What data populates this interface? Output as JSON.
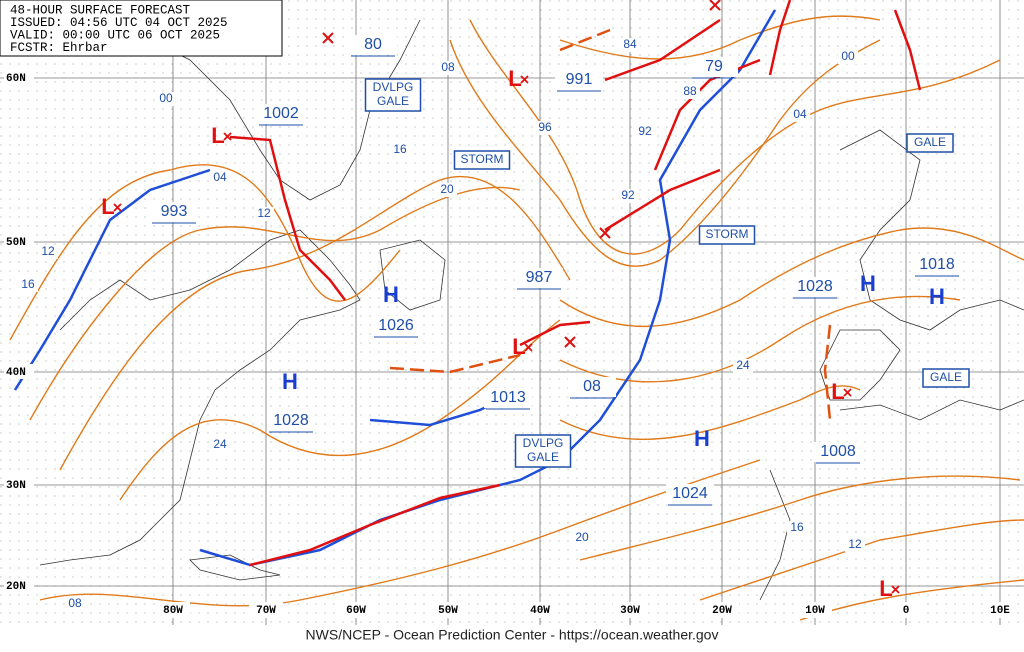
{
  "header": {
    "lines": [
      "48-HOUR SURFACE FORECAST",
      "ISSUED: 04:56 UTC 04 OCT 2025",
      "VALID:  00:00 UTC 06 OCT 2025",
      "FCSTR:  Ehrbar"
    ]
  },
  "latitude_labels": [
    "60N",
    "50N",
    "40N",
    "30N",
    "20N"
  ],
  "longitude_labels": [
    "80W",
    "70W",
    "60W",
    "50W",
    "40W",
    "30W",
    "20W",
    "10W",
    "0",
    "10E"
  ],
  "center_pressures": [
    "80",
    "1002",
    "993",
    "1026",
    "1028",
    "987",
    "1013",
    "991",
    "79",
    "08",
    "1024",
    "1028",
    "1018",
    "1008"
  ],
  "isobar_labels": [
    "00",
    "04",
    "12",
    "16",
    "20",
    "24",
    "08",
    "96",
    "92",
    "92",
    "84",
    "88",
    "04",
    "00",
    "12",
    "16",
    "24",
    "20",
    "16",
    "12",
    "08"
  ],
  "highs": [
    "H",
    "H",
    "H",
    "H",
    "H"
  ],
  "lows": [
    "L",
    "L",
    "L",
    "L",
    "L",
    "L"
  ],
  "warnings": [
    [
      "DVLPG",
      "GALE"
    ],
    [
      "STORM"
    ],
    [
      "STORM"
    ],
    [
      "GALE"
    ],
    [
      "GALE"
    ],
    [
      "DVLPG",
      "GALE"
    ]
  ],
  "footer": "NWS/NCEP - Ocean Prediction Center - https://ocean.weather.gov"
}
